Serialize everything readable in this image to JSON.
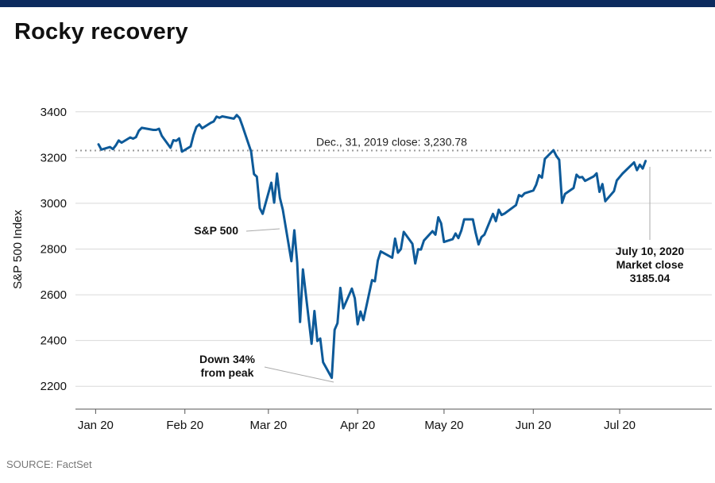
{
  "header": {
    "title": "Rocky recovery"
  },
  "footer": {
    "source": "SOURCE: FactSet"
  },
  "chart_data": {
    "type": "line",
    "title": "Rocky recovery",
    "ylabel": "S&P 500 Index",
    "xlabel": "",
    "ylim": [
      2100,
      3500
    ],
    "yticks": [
      2200,
      2400,
      2600,
      2800,
      3000,
      3200,
      3400
    ],
    "xticks": [
      {
        "label": "Jan 20",
        "x": "2020-01-01"
      },
      {
        "label": "Feb 20",
        "x": "2020-02-01"
      },
      {
        "label": "Mar 20",
        "x": "2020-03-01"
      },
      {
        "label": "Apr 20",
        "x": "2020-04-01"
      },
      {
        "label": "May 20",
        "x": "2020-05-01"
      },
      {
        "label": "Jun 20",
        "x": "2020-06-01"
      },
      {
        "label": "Jul 20",
        "x": "2020-07-01"
      }
    ],
    "xlim": [
      "2019-12-25",
      "2020-08-02"
    ],
    "grid": true,
    "line_color": "#0d5a99",
    "reference_line": {
      "value": 3230.78,
      "label": "Dec., 31, 2019 close:  3,230.78"
    },
    "annotations": {
      "series_label": "S&P 500",
      "trough_line1": "Down 34%",
      "trough_line2": "from peak",
      "close_line1": "July 10, 2020",
      "close_line2": "Market close",
      "close_line3": "3185.04"
    },
    "series": [
      {
        "values": [
          [
            "2020-01-02",
            3258
          ],
          [
            "2020-01-03",
            3235
          ],
          [
            "2020-01-06",
            3246
          ],
          [
            "2020-01-07",
            3237
          ],
          [
            "2020-01-08",
            3253
          ],
          [
            "2020-01-09",
            3275
          ],
          [
            "2020-01-10",
            3265
          ],
          [
            "2020-01-13",
            3288
          ],
          [
            "2020-01-14",
            3283
          ],
          [
            "2020-01-15",
            3289
          ],
          [
            "2020-01-16",
            3317
          ],
          [
            "2020-01-17",
            3330
          ],
          [
            "2020-01-21",
            3321
          ],
          [
            "2020-01-22",
            3321
          ],
          [
            "2020-01-23",
            3326
          ],
          [
            "2020-01-24",
            3295
          ],
          [
            "2020-01-27",
            3243
          ],
          [
            "2020-01-28",
            3276
          ],
          [
            "2020-01-29",
            3273
          ],
          [
            "2020-01-30",
            3284
          ],
          [
            "2020-01-31",
            3226
          ],
          [
            "2020-02-03",
            3249
          ],
          [
            "2020-02-04",
            3298
          ],
          [
            "2020-02-05",
            3334
          ],
          [
            "2020-02-06",
            3345
          ],
          [
            "2020-02-07",
            3328
          ],
          [
            "2020-02-10",
            3352
          ],
          [
            "2020-02-11",
            3358
          ],
          [
            "2020-02-12",
            3379
          ],
          [
            "2020-02-13",
            3374
          ],
          [
            "2020-02-14",
            3380
          ],
          [
            "2020-02-18",
            3370
          ],
          [
            "2020-02-19",
            3386
          ],
          [
            "2020-02-20",
            3373
          ],
          [
            "2020-02-21",
            3338
          ],
          [
            "2020-02-24",
            3226
          ],
          [
            "2020-02-25",
            3128
          ],
          [
            "2020-02-26",
            3116
          ],
          [
            "2020-02-27",
            2979
          ],
          [
            "2020-02-28",
            2954
          ],
          [
            "2020-03-02",
            3090
          ],
          [
            "2020-03-03",
            3003
          ],
          [
            "2020-03-04",
            3130
          ],
          [
            "2020-03-05",
            3024
          ],
          [
            "2020-03-06",
            2972
          ],
          [
            "2020-03-09",
            2747
          ],
          [
            "2020-03-10",
            2882
          ],
          [
            "2020-03-11",
            2741
          ],
          [
            "2020-03-12",
            2481
          ],
          [
            "2020-03-13",
            2711
          ],
          [
            "2020-03-16",
            2386
          ],
          [
            "2020-03-17",
            2529
          ],
          [
            "2020-03-18",
            2398
          ],
          [
            "2020-03-19",
            2409
          ],
          [
            "2020-03-20",
            2305
          ],
          [
            "2020-03-23",
            2237
          ],
          [
            "2020-03-24",
            2447
          ],
          [
            "2020-03-25",
            2476
          ],
          [
            "2020-03-26",
            2630
          ],
          [
            "2020-03-27",
            2541
          ],
          [
            "2020-03-30",
            2627
          ],
          [
            "2020-03-31",
            2585
          ],
          [
            "2020-04-01",
            2471
          ],
          [
            "2020-04-02",
            2527
          ],
          [
            "2020-04-03",
            2489
          ],
          [
            "2020-04-06",
            2664
          ],
          [
            "2020-04-07",
            2659
          ],
          [
            "2020-04-08",
            2750
          ],
          [
            "2020-04-09",
            2790
          ],
          [
            "2020-04-13",
            2762
          ],
          [
            "2020-04-14",
            2846
          ],
          [
            "2020-04-15",
            2784
          ],
          [
            "2020-04-16",
            2800
          ],
          [
            "2020-04-17",
            2875
          ],
          [
            "2020-04-20",
            2823
          ],
          [
            "2020-04-21",
            2737
          ],
          [
            "2020-04-22",
            2799
          ],
          [
            "2020-04-23",
            2798
          ],
          [
            "2020-04-24",
            2837
          ],
          [
            "2020-04-27",
            2878
          ],
          [
            "2020-04-28",
            2863
          ],
          [
            "2020-04-29",
            2939
          ],
          [
            "2020-04-30",
            2912
          ],
          [
            "2020-05-01",
            2831
          ],
          [
            "2020-05-04",
            2843
          ],
          [
            "2020-05-05",
            2868
          ],
          [
            "2020-05-06",
            2848
          ],
          [
            "2020-05-07",
            2881
          ],
          [
            "2020-05-08",
            2930
          ],
          [
            "2020-05-11",
            2930
          ],
          [
            "2020-05-12",
            2870
          ],
          [
            "2020-05-13",
            2820
          ],
          [
            "2020-05-14",
            2852
          ],
          [
            "2020-05-15",
            2863
          ],
          [
            "2020-05-18",
            2954
          ],
          [
            "2020-05-19",
            2922
          ],
          [
            "2020-05-20",
            2972
          ],
          [
            "2020-05-21",
            2949
          ],
          [
            "2020-05-22",
            2955
          ],
          [
            "2020-05-26",
            2992
          ],
          [
            "2020-05-27",
            3036
          ],
          [
            "2020-05-28",
            3030
          ],
          [
            "2020-05-29",
            3044
          ],
          [
            "2020-06-01",
            3056
          ],
          [
            "2020-06-02",
            3081
          ],
          [
            "2020-06-03",
            3123
          ],
          [
            "2020-06-04",
            3112
          ],
          [
            "2020-06-05",
            3194
          ],
          [
            "2020-06-08",
            3232
          ],
          [
            "2020-06-09",
            3207
          ],
          [
            "2020-06-10",
            3190
          ],
          [
            "2020-06-11",
            3002
          ],
          [
            "2020-06-12",
            3041
          ],
          [
            "2020-06-15",
            3067
          ],
          [
            "2020-06-16",
            3125
          ],
          [
            "2020-06-17",
            3113
          ],
          [
            "2020-06-18",
            3115
          ],
          [
            "2020-06-19",
            3098
          ],
          [
            "2020-06-22",
            3118
          ],
          [
            "2020-06-23",
            3131
          ],
          [
            "2020-06-24",
            3050
          ],
          [
            "2020-06-25",
            3084
          ],
          [
            "2020-06-26",
            3009
          ],
          [
            "2020-06-29",
            3053
          ],
          [
            "2020-06-30",
            3100
          ],
          [
            "2020-07-01",
            3115
          ],
          [
            "2020-07-02",
            3130
          ],
          [
            "2020-07-06",
            3179
          ],
          [
            "2020-07-07",
            3145
          ],
          [
            "2020-07-08",
            3169
          ],
          [
            "2020-07-09",
            3152
          ],
          [
            "2020-07-10",
            3185
          ]
        ]
      }
    ]
  }
}
